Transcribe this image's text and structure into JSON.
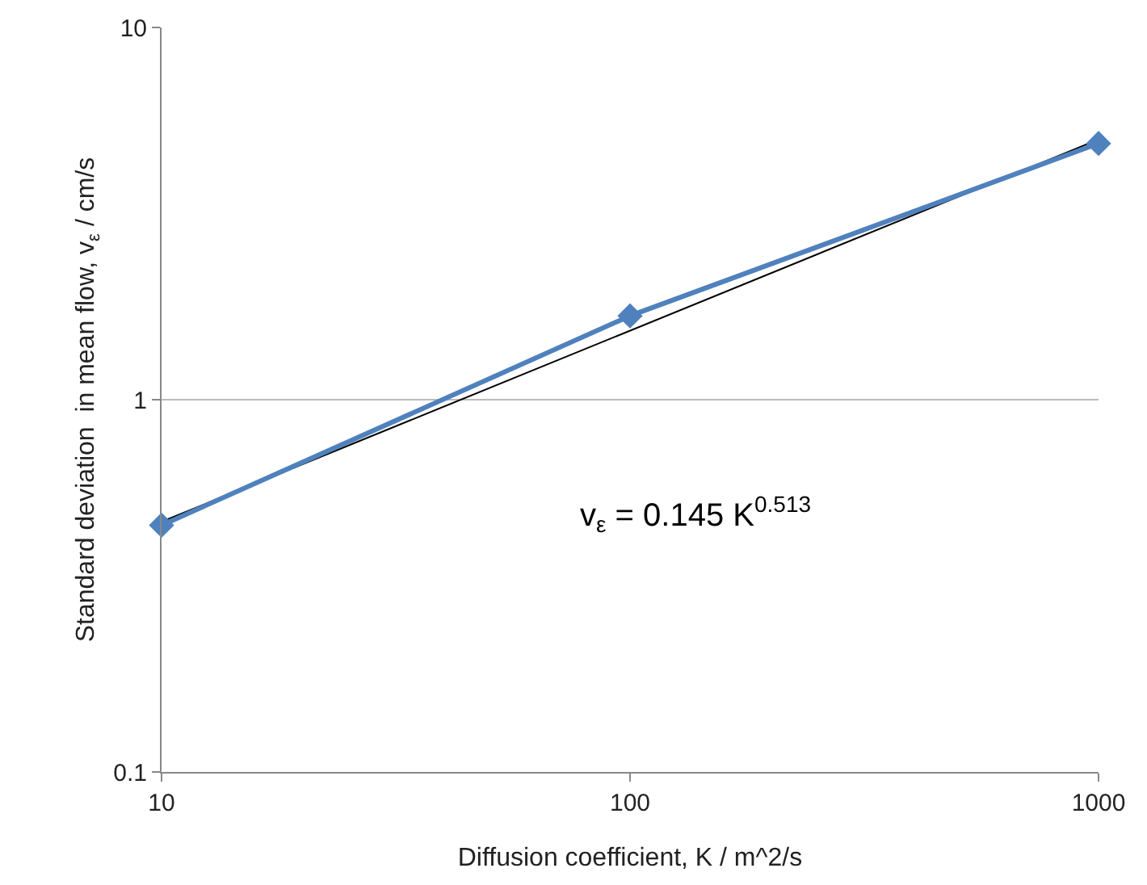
{
  "chart_data": {
    "type": "line",
    "xlabel": "Diffusion coefficient, K / m^2/s",
    "ylabel": "Standard deviation  in mean flow, v$_{ε}$ / cm/s",
    "log": "xy",
    "xlim": [
      10,
      1000
    ],
    "xticks": [
      10,
      100,
      1000
    ],
    "ylim": [
      0.1,
      10
    ],
    "yticks": [
      0.1,
      1,
      10
    ],
    "grid": "y",
    "series": [
      {
        "color": "#000000",
        "x": [
          10,
          1000
        ],
        "values": [
          0.47,
          5.0
        ],
        "marker": "none"
      },
      {
        "color": "#4f81bd",
        "x": [
          10,
          100,
          1000
        ],
        "values": [
          0.46,
          1.68,
          4.88
        ],
        "marker": "diamond"
      }
    ],
    "annotations": [
      "v$_{ε}$ = 0.145 K$^{0.513}$"
    ]
  }
}
